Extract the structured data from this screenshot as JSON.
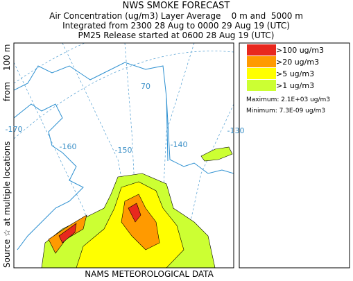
{
  "header": {
    "title": "NWS SMOKE FORECAST",
    "lines": [
      "Air Concentration (ug/m3) Layer Average    0 m and  5000 m",
      "Integrated from 2300 28 Aug to 0000 29 Aug 19 (UTC)",
      "PM25 Release started at 0600 28 Aug 19 (UTC)"
    ]
  },
  "side_label": [
    "Source ☆",
    "at multiple locations",
    "from",
    "100 m"
  ],
  "map": {
    "labels": [
      "70",
      "-170",
      "-160",
      "-150",
      "-140",
      "-130"
    ]
  },
  "legend": {
    "items": [
      {
        "label": ">100 ug/m3",
        "color": "#e8281e"
      },
      {
        "label": ">20 ug/m3",
        "color": "#ff9a00"
      },
      {
        "label": ">5 ug/m3",
        "color": "#ffff00"
      },
      {
        "label": ">1 ug/m3",
        "color": "#ccff33"
      }
    ],
    "stats": [
      "Maximum: 2.1E+03 ug/m3",
      "Minimum: 7.3E-09 ug/m3"
    ]
  },
  "footer": "NAMS METEOROLOGICAL DATA"
}
